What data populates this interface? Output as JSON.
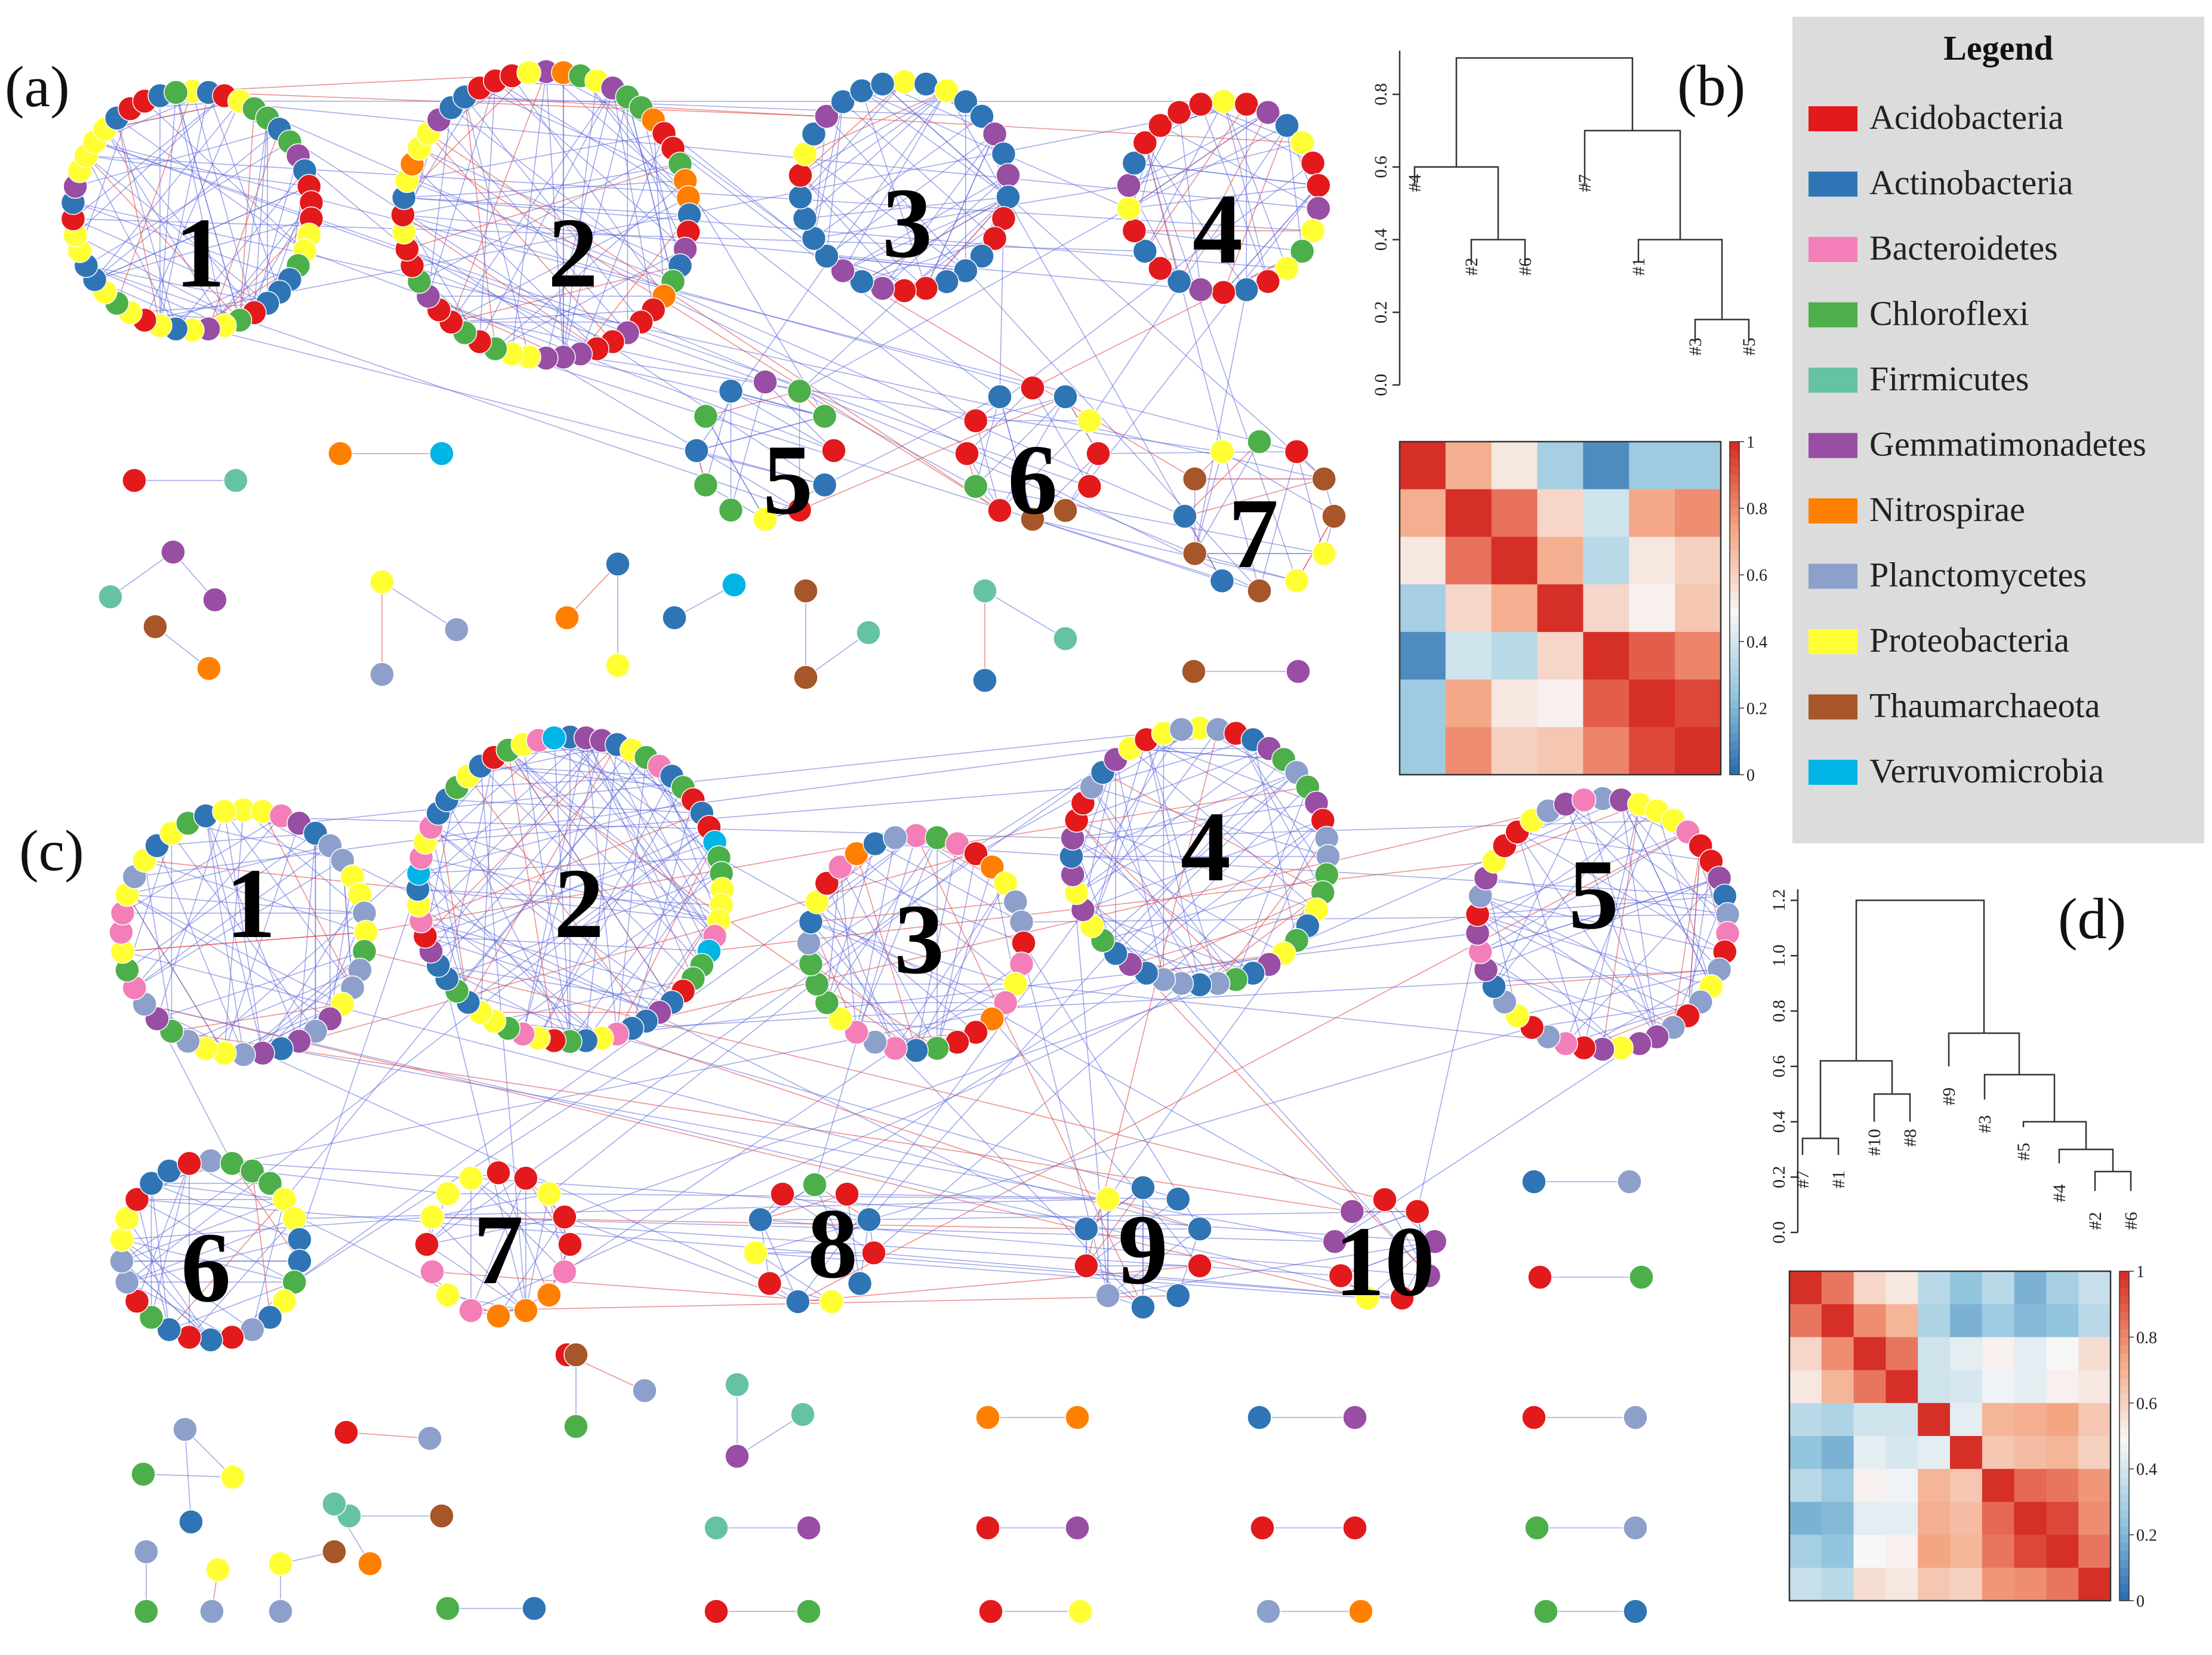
{
  "panels": {
    "a": "(a)",
    "b": "(b)",
    "c": "(c)",
    "d": "(d)"
  },
  "legend": {
    "title": "Legend",
    "items": [
      {
        "name": "Acidobacteria",
        "color": "#e31a1c"
      },
      {
        "name": "Actinobacteria",
        "color": "#2f75b5"
      },
      {
        "name": "Bacteroidetes",
        "color": "#f47eb8"
      },
      {
        "name": "Chloroflexi",
        "color": "#4daf4a"
      },
      {
        "name": "Firrmicutes",
        "color": "#66c2a5"
      },
      {
        "name": "Gemmatimonadetes",
        "color": "#984ea3"
      },
      {
        "name": "Nitrospirae",
        "color": "#ff7f00"
      },
      {
        "name": "Planctomycetes",
        "color": "#8da0cb"
      },
      {
        "name": "Proteobacteria",
        "color": "#ffff33"
      },
      {
        "name": "Thaumarchaeota",
        "color": "#a65628"
      },
      {
        "name": "Verruvomicrobia",
        "color": "#00b4e6"
      }
    ]
  },
  "network_a": {
    "modules": [
      "1",
      "2",
      "3",
      "4",
      "5",
      "6",
      "7"
    ]
  },
  "network_c": {
    "modules": [
      "1",
      "2",
      "3",
      "4",
      "5",
      "6",
      "7",
      "8",
      "9",
      "10"
    ]
  },
  "dendrogram_b": {
    "yticks": [
      "0.0",
      "0.2",
      "0.4",
      "0.6",
      "0.8"
    ],
    "leaves": [
      "#4",
      "#2",
      "#6",
      "#7",
      "#1",
      "#3",
      "#5"
    ]
  },
  "dendrogram_d": {
    "yticks": [
      "0.0",
      "0.2",
      "0.4",
      "0.6",
      "0.8",
      "1.0",
      "1.2"
    ],
    "leaves": [
      "#7",
      "#1",
      "#10",
      "#8",
      "#9",
      "#3",
      "#5",
      "#4",
      "#2",
      "#6"
    ]
  },
  "heatmap_b": {
    "colorbar_ticks": [
      "1",
      "0.8",
      "0.6",
      "0.4",
      "0.2",
      "0"
    ],
    "matrix": [
      [
        1.0,
        0.72,
        0.55,
        0.3,
        0.1,
        0.28,
        0.28
      ],
      [
        0.72,
        1.0,
        0.86,
        0.6,
        0.4,
        0.74,
        0.8
      ],
      [
        0.55,
        0.86,
        1.0,
        0.72,
        0.35,
        0.55,
        0.62
      ],
      [
        0.3,
        0.6,
        0.72,
        1.0,
        0.6,
        0.52,
        0.65
      ],
      [
        0.1,
        0.4,
        0.35,
        0.6,
        1.0,
        0.9,
        0.82
      ],
      [
        0.28,
        0.74,
        0.55,
        0.52,
        0.9,
        1.0,
        0.95
      ],
      [
        0.28,
        0.8,
        0.62,
        0.65,
        0.82,
        0.95,
        1.0
      ]
    ]
  },
  "heatmap_d": {
    "colorbar_ticks": [
      "1",
      "0.8",
      "0.6",
      "0.4",
      "0.2",
      "0"
    ],
    "matrix": [
      [
        1.0,
        0.85,
        0.6,
        0.55,
        0.35,
        0.25,
        0.35,
        0.2,
        0.3,
        0.38
      ],
      [
        0.85,
        1.0,
        0.8,
        0.7,
        0.32,
        0.2,
        0.28,
        0.22,
        0.25,
        0.35
      ],
      [
        0.6,
        0.8,
        1.0,
        0.85,
        0.4,
        0.45,
        0.52,
        0.45,
        0.5,
        0.58
      ],
      [
        0.55,
        0.7,
        0.85,
        1.0,
        0.4,
        0.42,
        0.48,
        0.45,
        0.52,
        0.55
      ],
      [
        0.35,
        0.32,
        0.4,
        0.4,
        1.0,
        0.45,
        0.7,
        0.72,
        0.75,
        0.65
      ],
      [
        0.25,
        0.2,
        0.45,
        0.42,
        0.45,
        1.0,
        0.65,
        0.68,
        0.7,
        0.62
      ],
      [
        0.35,
        0.28,
        0.52,
        0.48,
        0.7,
        0.65,
        1.0,
        0.88,
        0.85,
        0.78
      ],
      [
        0.2,
        0.22,
        0.45,
        0.45,
        0.72,
        0.68,
        0.88,
        1.0,
        0.95,
        0.8
      ],
      [
        0.3,
        0.25,
        0.5,
        0.52,
        0.75,
        0.7,
        0.85,
        0.95,
        1.0,
        0.85
      ],
      [
        0.38,
        0.35,
        0.58,
        0.55,
        0.65,
        0.62,
        0.78,
        0.8,
        0.85,
        1.0
      ]
    ]
  }
}
